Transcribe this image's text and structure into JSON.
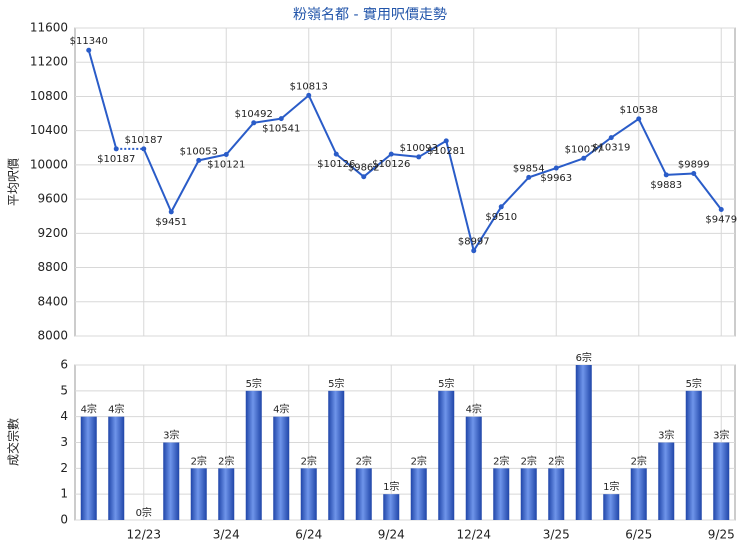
{
  "chart_data": [
    {
      "type": "line",
      "title": "粉嶺名都 - 實用呎價走勢",
      "ylabel": "平均呎價",
      "values": [
        11340,
        10187,
        10187,
        9451,
        10053,
        10121,
        10492,
        10541,
        10813,
        10126,
        9862,
        10126,
        10093,
        10281,
        8997,
        9510,
        9854,
        9963,
        10077,
        10319,
        10538,
        9883,
        9899,
        9479
      ],
      "value_labels": [
        "$11340",
        "$10187",
        "$10187",
        "$9451",
        "$10053",
        "$10121",
        "$10492",
        "$10541",
        "$10813",
        "$10126",
        "$9862",
        "$10126",
        "$10093",
        "$10281",
        "$8997",
        "$9510",
        "$9854",
        "$9963",
        "$10077",
        "$10319",
        "$10538",
        "$9883",
        "$9899",
        "$9479"
      ],
      "color": "#2a5cc8",
      "ylim": [
        8000,
        11600
      ],
      "yticks": [
        8000,
        8400,
        8800,
        9200,
        9600,
        10000,
        10400,
        10800,
        11200,
        11600
      ],
      "grid": true
    },
    {
      "type": "bar",
      "ylabel": "成交宗數",
      "categories": [
        null,
        null,
        "12/23",
        null,
        null,
        "3/24",
        null,
        null,
        "6/24",
        null,
        null,
        "9/24",
        null,
        null,
        "12/24",
        null,
        null,
        "3/25",
        null,
        null,
        "6/25",
        null,
        null,
        "9/25"
      ],
      "values": [
        4,
        4,
        0,
        3,
        2,
        2,
        5,
        4,
        2,
        5,
        2,
        1,
        2,
        5,
        4,
        2,
        2,
        2,
        6,
        1,
        2,
        3,
        5,
        3
      ],
      "value_labels": [
        "4宗",
        "4宗",
        "0宗",
        "3宗",
        "2宗",
        "2宗",
        "5宗",
        "4宗",
        "2宗",
        "5宗",
        "2宗",
        "1宗",
        "2宗",
        "5宗",
        "4宗",
        "2宗",
        "2宗",
        "2宗",
        "6宗",
        "1宗",
        "2宗",
        "3宗",
        "5宗",
        "3宗"
      ],
      "color": "#3a66d0",
      "ylim": [
        0,
        6
      ],
      "yticks": [
        0,
        1,
        2,
        3,
        4,
        5,
        6
      ],
      "grid": true
    }
  ]
}
